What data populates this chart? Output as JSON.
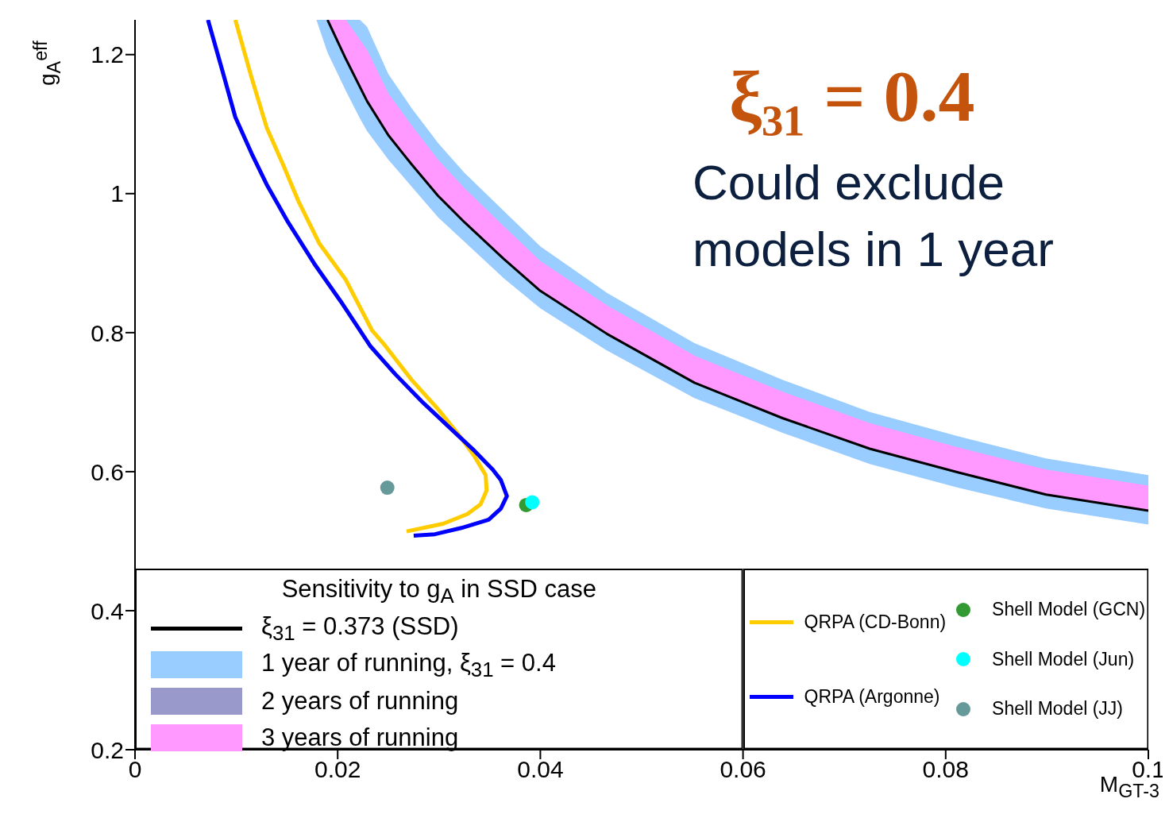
{
  "chart_data": {
    "type": "line",
    "xlabel": "M$_{GT-3}$",
    "ylabel": "g$_{A}$$^{eff}$",
    "legend_title": "Sensitivity to g$_{A}$ in SSD case",
    "legend": "bottom",
    "grid": false,
    "xlim": [
      0,
      0.1
    ],
    "xticks": [
      0,
      0.02,
      0.04,
      0.06,
      0.08,
      0.1
    ],
    "ylim": [
      0.2,
      1.25
    ],
    "yticks": [
      0.2,
      0.4,
      0.6,
      0.8,
      1,
      1.2
    ],
    "annotations": [
      "ξ₃₁ = 0.4",
      "Could exclude models in 1 year"
    ],
    "series": [
      {
        "name": "ξ$_{31}$ = 0.373 (SSD)",
        "color": "#000000",
        "x": [
          0.019,
          0.0208,
          0.0229,
          0.025,
          0.0273,
          0.0299,
          0.0325,
          0.0364,
          0.04,
          0.0466,
          0.0552,
          0.0639,
          0.0725,
          0.0812,
          0.0899,
          0.1
        ],
        "values": [
          1.25,
          1.194,
          1.133,
          1.084,
          1.042,
          0.997,
          0.959,
          0.906,
          0.86,
          0.798,
          0.728,
          0.677,
          0.633,
          0.599,
          0.567,
          0.544
        ]
      },
      {
        "type": "area",
        "name": "1 year of running, ξ$_{31}$ = 0.4",
        "color": "#99ccff",
        "x": [
          0.0179,
          0.019,
          0.0208,
          0.0222,
          0.0229,
          0.025,
          0.0273,
          0.0299,
          0.0325,
          0.0364,
          0.04,
          0.0466,
          0.0552,
          0.0639,
          0.0725,
          0.0812,
          0.0899,
          0.1
        ],
        "values": [
          null,
          null,
          null,
          null,
          null,
          null,
          null,
          null,
          null,
          null,
          null,
          null,
          null,
          null,
          null,
          null,
          null,
          null
        ],
        "lower": [
          1.25,
          1.203,
          1.148,
          1.108,
          1.09,
          1.049,
          1.01,
          0.966,
          0.931,
          0.878,
          0.835,
          0.774,
          0.706,
          0.656,
          0.611,
          0.577,
          0.547,
          0.524
        ],
        "upper": [
          1.25,
          1.25,
          1.25,
          1.25,
          1.24,
          1.172,
          1.123,
          1.073,
          1.03,
          0.975,
          0.924,
          0.857,
          0.785,
          0.732,
          0.686,
          0.651,
          0.619,
          0.595
        ]
      },
      {
        "type": "area",
        "name": "2 years of running",
        "color": "#9999cc",
        "values": [
          null
        ]
      },
      {
        "type": "area",
        "name": "3 years of running",
        "color": "#ff99ff",
        "x": [
          0.019,
          0.0208,
          0.0229,
          0.025,
          0.0273,
          0.0299,
          0.0325,
          0.0364,
          0.04,
          0.0466,
          0.0552,
          0.0639,
          0.0725,
          0.0812,
          0.0899,
          0.1
        ],
        "values": [
          null,
          null,
          null,
          null,
          null,
          null,
          null,
          null,
          null,
          null,
          null,
          null,
          null,
          null,
          null,
          null
        ],
        "lower": [
          1.25,
          1.194,
          1.133,
          1.084,
          1.042,
          0.997,
          0.959,
          0.906,
          0.86,
          0.798,
          0.728,
          0.677,
          0.633,
          0.599,
          0.567,
          0.544
        ],
        "upper": [
          1.25,
          1.25,
          1.207,
          1.144,
          1.098,
          1.049,
          1.008,
          0.953,
          0.903,
          0.839,
          0.767,
          0.715,
          0.67,
          0.635,
          0.603,
          0.58
        ]
      },
      {
        "name": "QRPA (CD-Bonn)",
        "color": "#ffcc00",
        "x": [
          0.0099,
          0.0115,
          0.013,
          0.0146,
          0.0161,
          0.0182,
          0.0208,
          0.0234,
          0.0247,
          0.0273,
          0.0299,
          0.032,
          0.0335,
          0.0346,
          0.0347,
          0.0341,
          0.0328,
          0.0304,
          0.0268
        ],
        "values": [
          1.25,
          1.167,
          1.095,
          1.042,
          0.99,
          0.928,
          0.876,
          0.803,
          0.781,
          0.732,
          0.69,
          0.652,
          0.622,
          0.595,
          0.573,
          0.553,
          0.539,
          0.525,
          0.514
        ]
      },
      {
        "name": "QRPA (Argonne)",
        "color": "#0000ff",
        "x": [
          0.0072,
          0.0086,
          0.0099,
          0.0115,
          0.013,
          0.0151,
          0.0177,
          0.0203,
          0.0232,
          0.0257,
          0.0283,
          0.031,
          0.0335,
          0.0353,
          0.0361,
          0.0367,
          0.0361,
          0.0349,
          0.0322,
          0.0296,
          0.0275
        ],
        "values": [
          1.25,
          1.178,
          1.11,
          1.058,
          1.013,
          0.959,
          0.899,
          0.845,
          0.781,
          0.74,
          0.701,
          0.664,
          0.63,
          0.603,
          0.588,
          0.565,
          0.547,
          0.531,
          0.519,
          0.51,
          0.508
        ]
      },
      {
        "type": "scatter",
        "name": "Shell Model (GCN)",
        "color": "#339933",
        "marker": "circle",
        "x": [
          0.0386
        ],
        "values": [
          0.552
        ]
      },
      {
        "type": "scatter",
        "name": "Shell Model (Jun)",
        "color": "#00ffff",
        "marker": "circle",
        "x": [
          0.0392
        ],
        "values": [
          0.556
        ]
      },
      {
        "type": "scatter",
        "name": "Shell Model (JJ)",
        "color": "#669999",
        "marker": "circle",
        "x": [
          0.0249
        ],
        "values": [
          0.577
        ]
      }
    ]
  }
}
